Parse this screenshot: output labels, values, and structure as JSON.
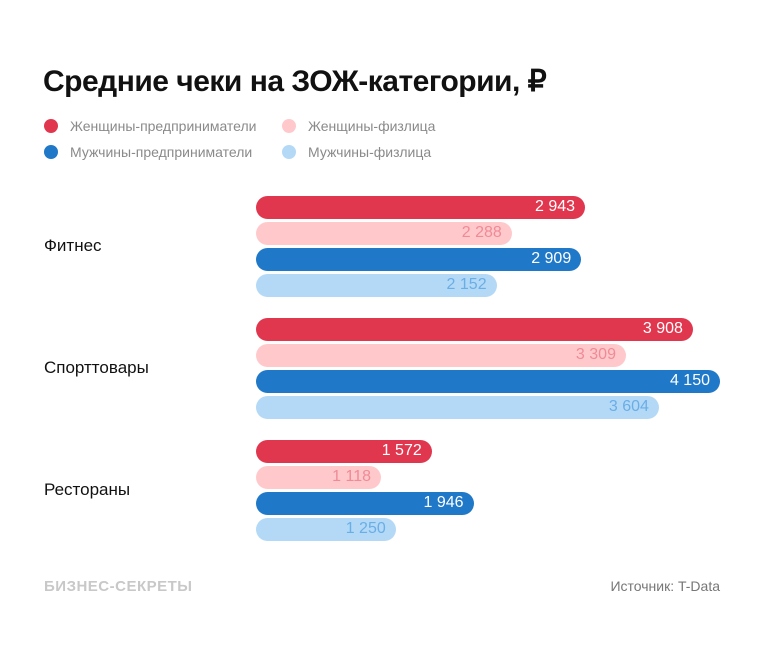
{
  "chart_data": {
    "type": "bar",
    "orientation": "horizontal",
    "title": "Средние чеки на ЗОЖ-категории, ₽",
    "categories": [
      "Фитнес",
      "Спорттовары",
      "Рестораны"
    ],
    "series": [
      {
        "name": "Женщины-предприниматели",
        "color": "#e0374e",
        "label_color": "#ffffff",
        "values": [
          2943,
          3908,
          1572
        ],
        "labels": [
          "2 943",
          "3 908",
          "1 572"
        ]
      },
      {
        "name": "Женщины-физлица",
        "color": "#ffc9cc",
        "label_color": "#f08a96",
        "values": [
          2288,
          3309,
          1118
        ],
        "labels": [
          "2 288",
          "3 309",
          "1 118"
        ]
      },
      {
        "name": "Мужчины-предприниматели",
        "color": "#1f78c8",
        "label_color": "#ffffff",
        "values": [
          2909,
          4150,
          1946
        ],
        "labels": [
          "2 909",
          "4 150",
          "1 946"
        ]
      },
      {
        "name": "Мужчины-физлица",
        "color": "#b3d9f7",
        "label_color": "#6aaee6",
        "values": [
          2152,
          3604,
          1250
        ],
        "labels": [
          "2 152",
          "3 604",
          "1 250"
        ]
      }
    ],
    "xlim": [
      0,
      4150
    ],
    "grid": false,
    "legend": "top-left"
  },
  "footer": {
    "brand": "БИЗНЕС-СЕКРЕТЫ",
    "source": "Источник: T-Data"
  }
}
